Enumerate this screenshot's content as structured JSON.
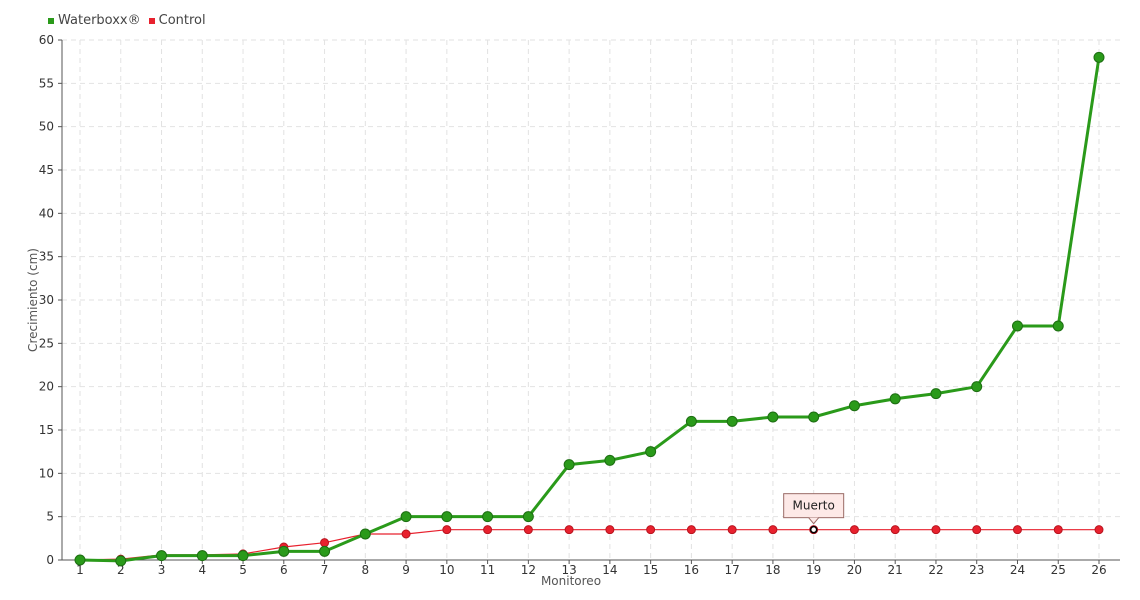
{
  "chart_data": {
    "type": "line",
    "title": "",
    "xlabel": "Monitoreo",
    "ylabel": "Crecimiento (cm)",
    "ylim": [
      0,
      60
    ],
    "yticks": [
      0,
      5,
      10,
      15,
      20,
      25,
      30,
      35,
      40,
      45,
      50,
      55,
      60
    ],
    "x": [
      1,
      2,
      3,
      4,
      5,
      6,
      7,
      8,
      9,
      10,
      11,
      12,
      13,
      14,
      15,
      16,
      17,
      18,
      19,
      20,
      21,
      22,
      23,
      24,
      25,
      26
    ],
    "grid": true,
    "legend_position": "top-left",
    "series": [
      {
        "name": "Waterboxx®",
        "color": "#2a9a1a",
        "values": [
          0,
          -0.1,
          0.5,
          0.5,
          0.5,
          1,
          1,
          3,
          5,
          5,
          5,
          5,
          11,
          11.5,
          12.5,
          16,
          16,
          16.5,
          16.5,
          17.8,
          18.6,
          19.2,
          20,
          27,
          27,
          58
        ]
      },
      {
        "name": "Control",
        "color": "#e8212e",
        "values": [
          0,
          0.1,
          0.6,
          0.6,
          0.7,
          1.5,
          2,
          3,
          3,
          3.5,
          3.5,
          3.5,
          3.5,
          3.5,
          3.5,
          3.5,
          3.5,
          3.5,
          3.5,
          3.5,
          3.5,
          3.5,
          3.5,
          3.5,
          3.5,
          3.5
        ]
      }
    ],
    "annotations": [
      {
        "text": "Muerto",
        "series": "Control",
        "x": 19,
        "y": 3.5
      }
    ]
  }
}
